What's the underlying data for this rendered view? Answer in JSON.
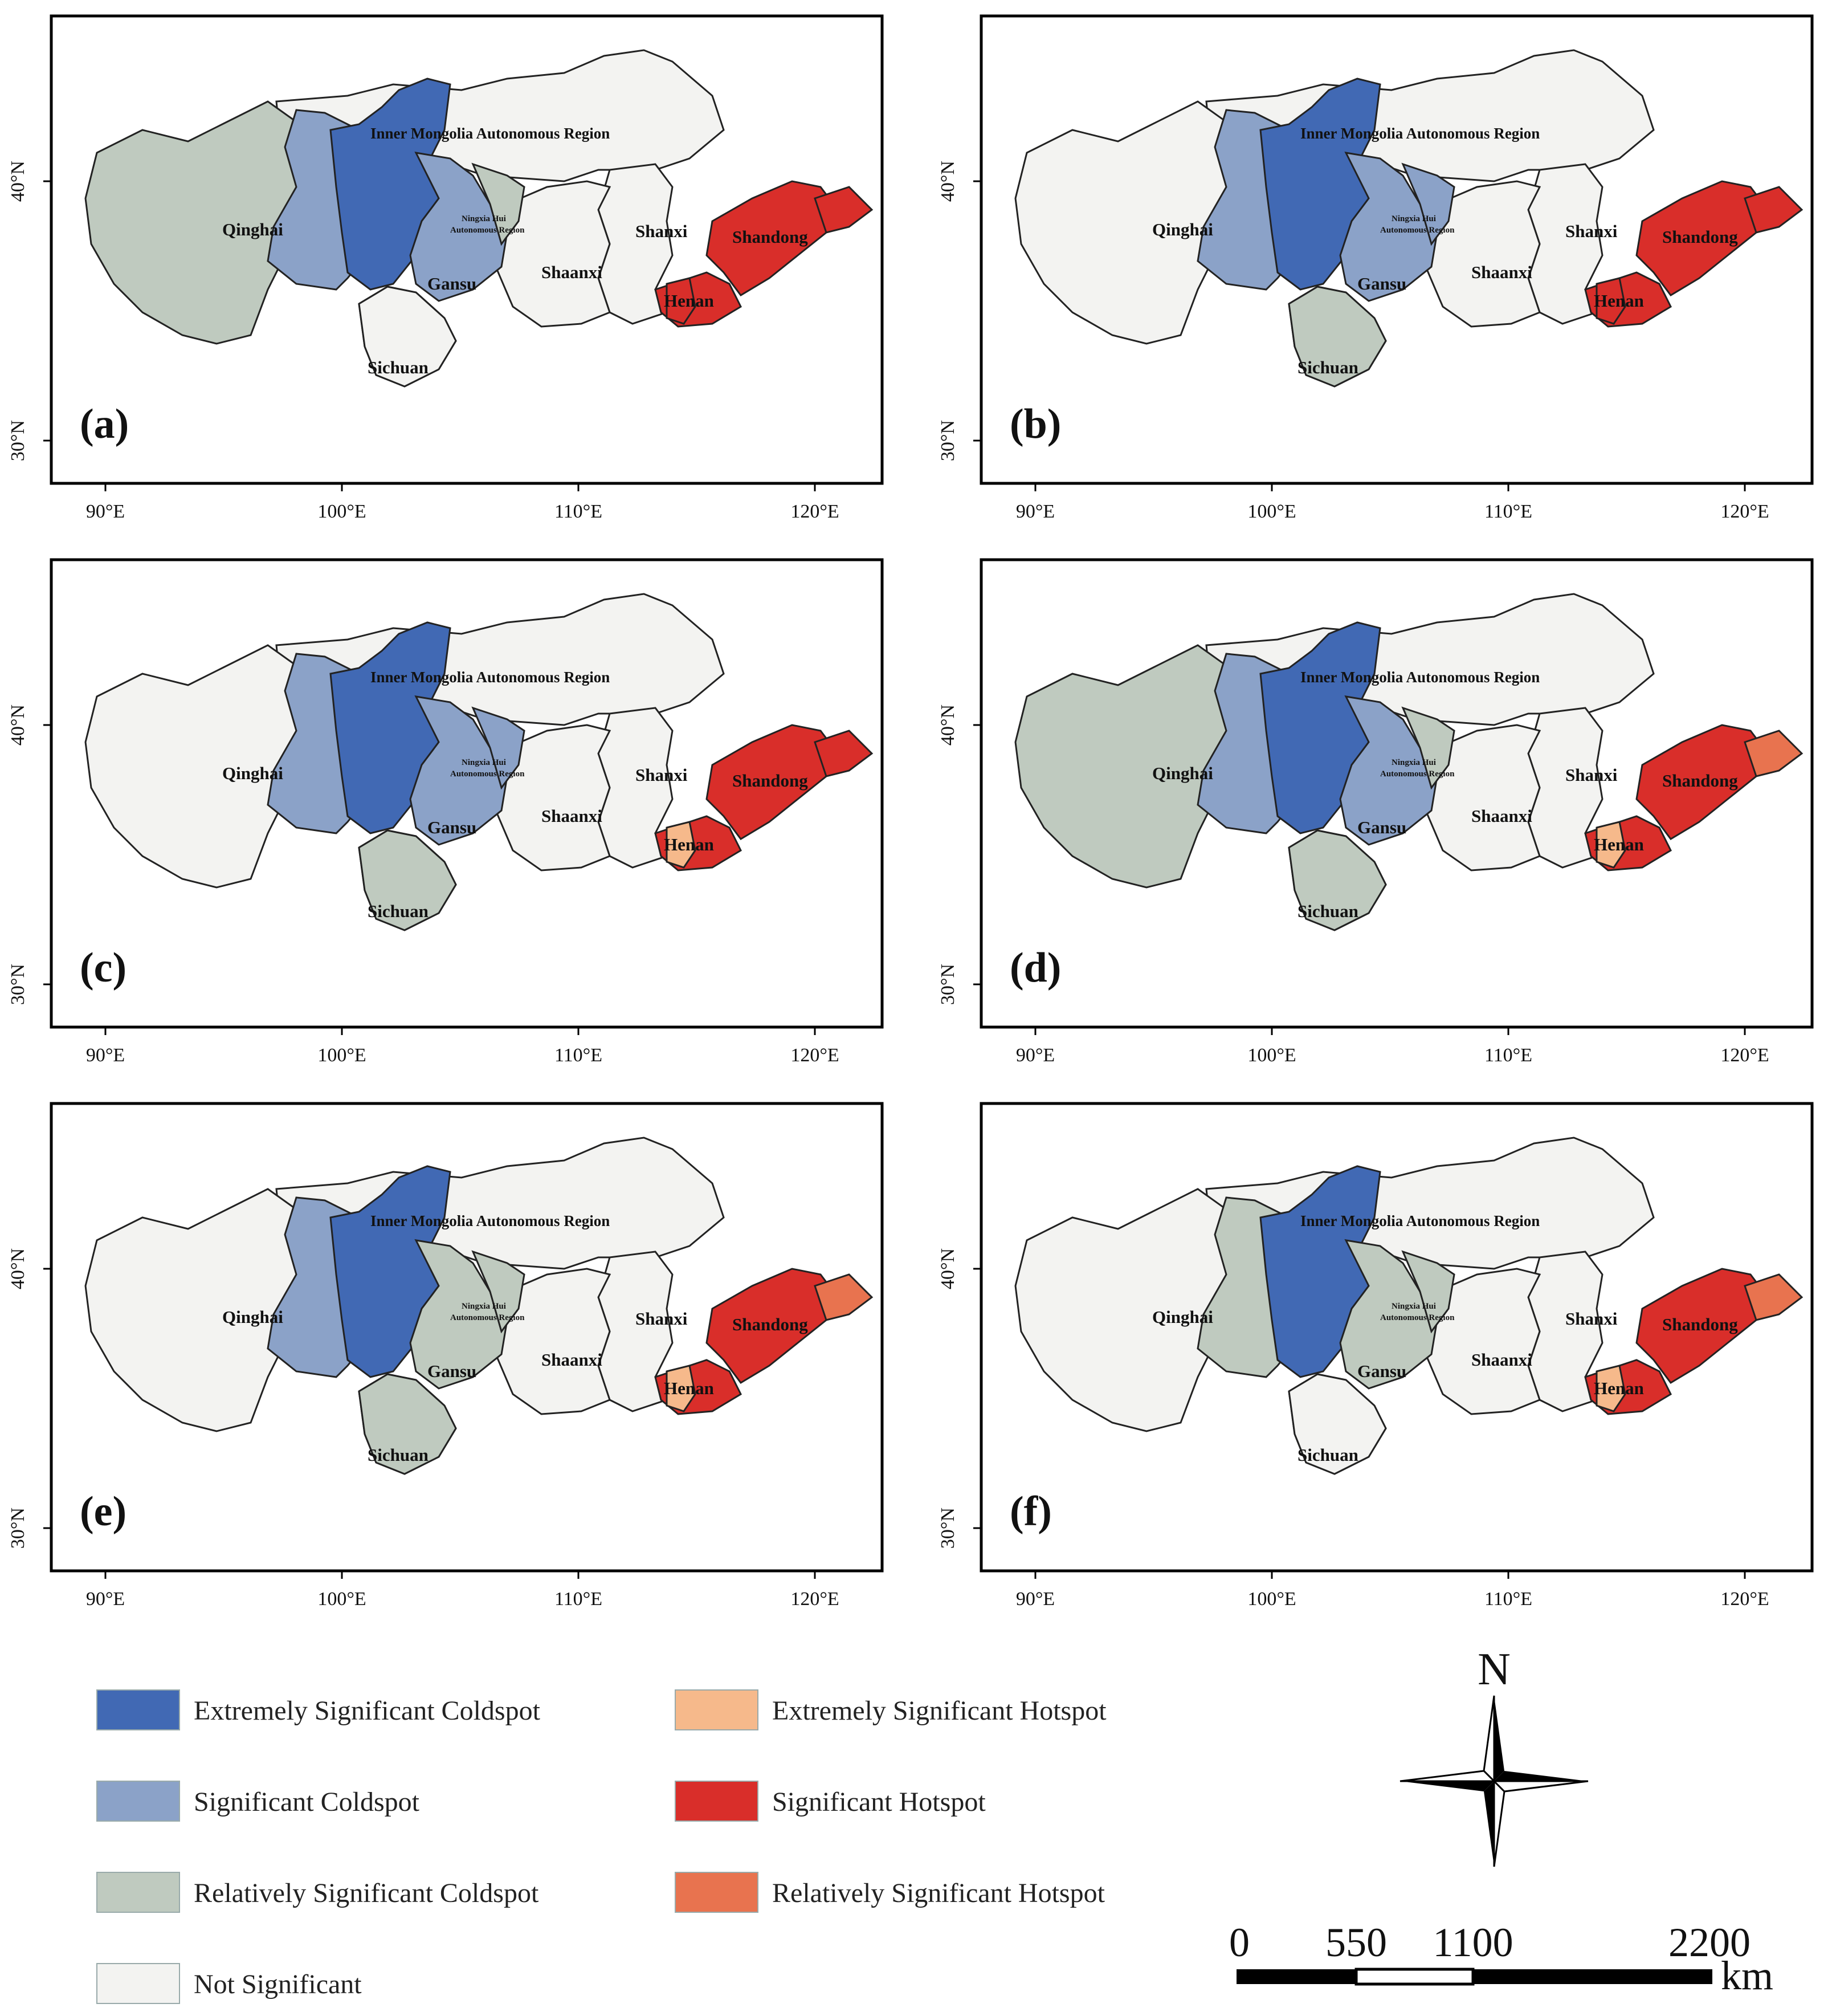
{
  "colors": {
    "extremely_significant_coldspot": "#4169b4",
    "significant_coldspot": "#8ba2c8",
    "relatively_significant_coldspot": "#bfcabf",
    "not_significant": "#f3f3f1",
    "extremely_significant_hotspot": "#f6b98b",
    "significant_hotspot": "#d92e2a",
    "relatively_significant_hotspot": "#e8734f"
  },
  "axes": {
    "lon_ticks": [
      "90°E",
      "100°E",
      "110°E",
      "120°E"
    ],
    "lat_ticks": [
      "30°N",
      "40°N"
    ]
  },
  "region_labels": {
    "inner_mongolia": "Inner Mongolia Autonomous Region",
    "qinghai": "Qinghai",
    "gansu": "Gansu",
    "ningxia_line1": "Ningxia Hui",
    "ningxia_line2": "Autonomous Region",
    "shanxi": "Shanxi",
    "shaanxi": "Shaanxi",
    "henan": "Henan",
    "shandong": "Shandong",
    "sichuan": "Sichuan"
  },
  "panels": [
    {
      "label": "(a)",
      "qinghai": "relatively_significant_coldspot",
      "qinghai_east": "significant_coldspot",
      "gansu_core": "extremely_significant_coldspot",
      "gansu_east": "significant_coldspot",
      "ningxia": "relatively_significant_coldspot",
      "sichuan_north": "not_significant",
      "henan": "significant_hotspot",
      "henan_west": "significant_hotspot",
      "shandong": "significant_hotspot",
      "shandong_east": "significant_hotspot"
    },
    {
      "label": "(b)",
      "qinghai": "not_significant",
      "qinghai_east": "significant_coldspot",
      "gansu_core": "extremely_significant_coldspot",
      "gansu_east": "significant_coldspot",
      "ningxia": "significant_coldspot",
      "sichuan_north": "relatively_significant_coldspot",
      "henan": "significant_hotspot",
      "henan_west": "significant_hotspot",
      "shandong": "significant_hotspot",
      "shandong_east": "significant_hotspot"
    },
    {
      "label": "(c)",
      "qinghai": "not_significant",
      "qinghai_east": "significant_coldspot",
      "gansu_core": "extremely_significant_coldspot",
      "gansu_east": "significant_coldspot",
      "ningxia": "significant_coldspot",
      "sichuan_north": "relatively_significant_coldspot",
      "henan": "significant_hotspot",
      "henan_west": "extremely_significant_hotspot",
      "shandong": "significant_hotspot",
      "shandong_east": "significant_hotspot"
    },
    {
      "label": "(d)",
      "qinghai": "relatively_significant_coldspot",
      "qinghai_east": "significant_coldspot",
      "gansu_core": "extremely_significant_coldspot",
      "gansu_east": "significant_coldspot",
      "ningxia": "relatively_significant_coldspot",
      "sichuan_north": "relatively_significant_coldspot",
      "henan": "significant_hotspot",
      "henan_west": "extremely_significant_hotspot",
      "shandong": "significant_hotspot",
      "shandong_east": "relatively_significant_hotspot"
    },
    {
      "label": "(e)",
      "qinghai": "not_significant",
      "qinghai_east": "significant_coldspot",
      "gansu_core": "extremely_significant_coldspot",
      "gansu_east": "relatively_significant_coldspot",
      "ningxia": "relatively_significant_coldspot",
      "sichuan_north": "relatively_significant_coldspot",
      "henan": "significant_hotspot",
      "henan_west": "extremely_significant_hotspot",
      "shandong": "significant_hotspot",
      "shandong_east": "relatively_significant_hotspot"
    },
    {
      "label": "(f)",
      "qinghai": "not_significant",
      "qinghai_east": "relatively_significant_coldspot",
      "gansu_core": "extremely_significant_coldspot",
      "gansu_east": "relatively_significant_coldspot",
      "ningxia": "relatively_significant_coldspot",
      "sichuan_north": "not_significant",
      "henan": "significant_hotspot",
      "henan_west": "extremely_significant_hotspot",
      "shandong": "significant_hotspot",
      "shandong_east": "relatively_significant_hotspot"
    }
  ],
  "legend": [
    {
      "key": "extremely_significant_coldspot",
      "label": "Extremely Significant Coldspot"
    },
    {
      "key": "significant_coldspot",
      "label": "Significant Coldspot"
    },
    {
      "key": "relatively_significant_coldspot",
      "label": "Relatively Significant Coldspot"
    },
    {
      "key": "not_significant",
      "label": "Not Significant"
    },
    {
      "key": "extremely_significant_hotspot",
      "label": "Extremely Significant Hotspot"
    },
    {
      "key": "significant_hotspot",
      "label": "Significant Hotspot"
    },
    {
      "key": "relatively_significant_hotspot",
      "label": "Relatively Significant Hotspot"
    }
  ],
  "north_arrow": {
    "label": "N"
  },
  "scale_bar": {
    "ticks": [
      "0",
      "550",
      "1100",
      "2200"
    ],
    "unit": "km"
  }
}
